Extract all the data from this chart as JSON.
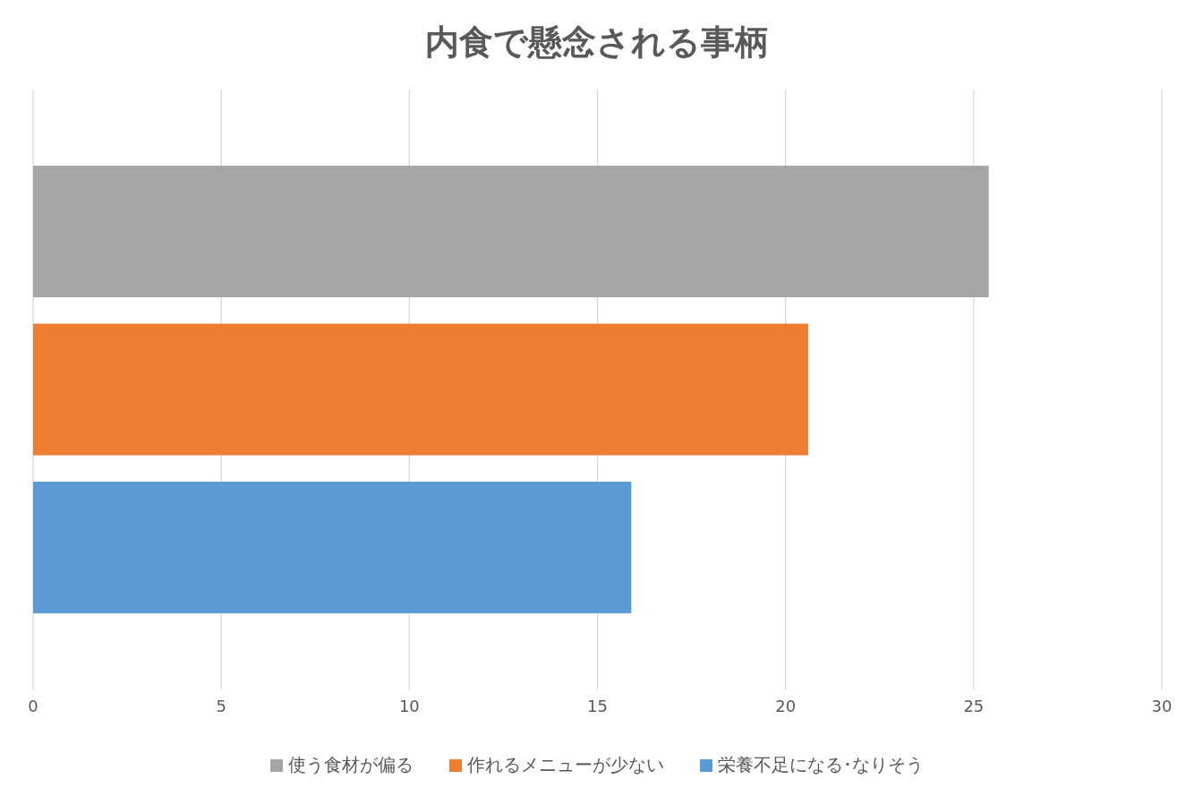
{
  "chart_data": {
    "type": "bar",
    "orientation": "horizontal",
    "title": "内食で懸念される事柄",
    "categories": [
      null
    ],
    "series": [
      {
        "name": "使う食材が偏る",
        "color": "#a5a5a5",
        "values": [
          25.4
        ]
      },
      {
        "name": "作れるメニューが少ない",
        "color": "#ed7d31",
        "values": [
          20.6
        ]
      },
      {
        "name": "栄養不足になる･なりそう",
        "color": "#5b9bd5",
        "values": [
          15.9
        ]
      }
    ],
    "xlim": [
      0,
      30
    ],
    "xticks": [
      0,
      5,
      10,
      15,
      20,
      25,
      30
    ],
    "grid": "x",
    "legend": "bottom"
  }
}
